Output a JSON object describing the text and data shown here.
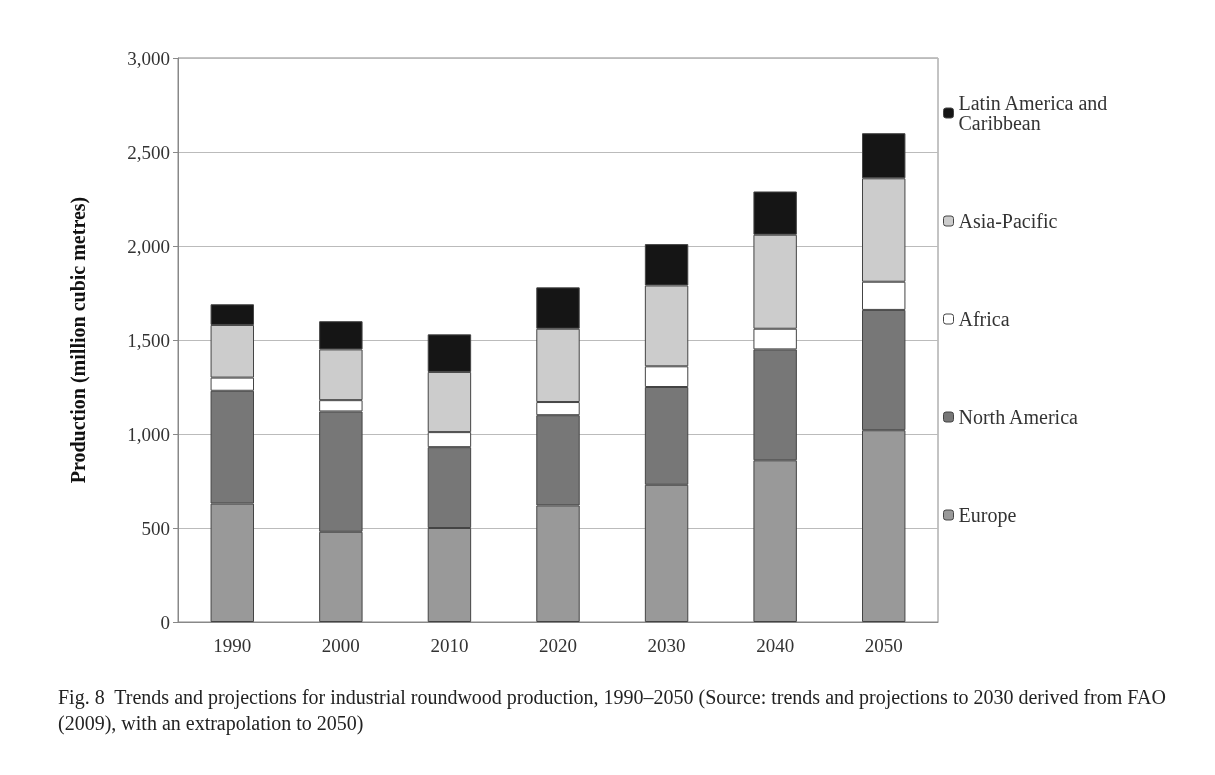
{
  "chart_data": {
    "type": "bar",
    "stacked": true,
    "ylabel": "Production (million cubic metres)",
    "categories": [
      "1990",
      "2000",
      "2010",
      "2020",
      "2030",
      "2040",
      "2050"
    ],
    "series": [
      {
        "name": "Europe",
        "color": "#999999",
        "values": [
          630,
          480,
          500,
          620,
          730,
          860,
          1020
        ]
      },
      {
        "name": "North America",
        "color": "#777777",
        "values": [
          600,
          640,
          430,
          480,
          520,
          590,
          640
        ]
      },
      {
        "name": "Africa",
        "color": "#ffffff",
        "values": [
          70,
          60,
          80,
          70,
          110,
          110,
          150
        ]
      },
      {
        "name": "Asia-Pacific",
        "color": "#cccccc",
        "values": [
          280,
          270,
          320,
          390,
          430,
          500,
          550
        ]
      },
      {
        "name": "Latin America and Caribbean",
        "color": "#151515",
        "values": [
          110,
          150,
          200,
          220,
          220,
          230,
          240
        ]
      }
    ],
    "ylim": [
      0,
      3000
    ],
    "yticks": [
      0,
      500,
      {
        "value": 1000,
        "label": "1,000"
      },
      {
        "value": 1500,
        "label": "1,500"
      },
      {
        "value": 2000,
        "label": "2,000"
      },
      {
        "value": 2500,
        "label": "2,500"
      },
      {
        "value": 3000,
        "label": "3,000"
      }
    ],
    "grid": "y",
    "legend": "right",
    "annotations": [
      "Fig. 8  Trends and projections for industrial roundwood production, 1990–2050 (Source: trends and projections to 2030 derived from FAO (2009), with an extrapolation to 2050)"
    ]
  }
}
